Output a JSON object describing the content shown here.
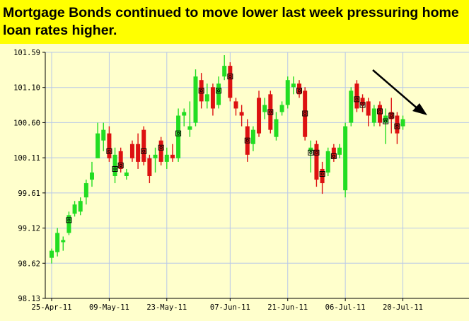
{
  "title": "Mortgage Bonds continued to move lower last week pressuring home loan rates higher.",
  "colors": {
    "background": "#ffffcc",
    "title_band": "#ffff00",
    "up": "#22dd22",
    "down": "#dd1111",
    "grid": "#b8c8e8"
  },
  "chart_data": {
    "type": "candlestick",
    "title": "Mortgage Bonds continued to move lower last week pressuring home loan rates higher.",
    "ylim": [
      98.13,
      101.59
    ],
    "y_ticks": [
      "101.59",
      "101.10",
      "100.60",
      "100.11",
      "99.61",
      "99.12",
      "98.62",
      "98.13"
    ],
    "x_ticks": [
      {
        "label": "25-Apr-11",
        "index": 0
      },
      {
        "label": "09-May-11",
        "index": 10
      },
      {
        "label": "23-May-11",
        "index": 20
      },
      {
        "label": "07-Jun-11",
        "index": 31
      },
      {
        "label": "21-Jun-11",
        "index": 41
      },
      {
        "label": "06-Jul-11",
        "index": 51
      },
      {
        "label": "20-Jul-11",
        "index": 61
      }
    ],
    "grid": true,
    "annotation": "downward arrow drawn over the last two weeks of July",
    "candles": [
      {
        "o": 98.7,
        "h": 98.83,
        "l": 98.62,
        "c": 98.8
      },
      {
        "o": 98.78,
        "h": 99.12,
        "l": 98.72,
        "c": 99.05
      },
      {
        "o": 98.92,
        "h": 99.0,
        "l": 98.8,
        "c": 98.95
      },
      {
        "o": 99.05,
        "h": 99.35,
        "l": 99.02,
        "c": 99.3,
        "m": 99.23
      },
      {
        "o": 99.32,
        "h": 99.5,
        "l": 99.28,
        "c": 99.45
      },
      {
        "o": 99.35,
        "h": 99.55,
        "l": 99.3,
        "c": 99.5
      },
      {
        "o": 99.55,
        "h": 99.8,
        "l": 99.45,
        "c": 99.75
      },
      {
        "o": 99.8,
        "h": 100.05,
        "l": 99.7,
        "c": 99.9
      },
      {
        "o": 100.1,
        "h": 100.6,
        "l": 100.1,
        "c": 100.45
      },
      {
        "o": 100.35,
        "h": 100.6,
        "l": 100.2,
        "c": 100.5
      },
      {
        "o": 100.45,
        "h": 100.55,
        "l": 100.05,
        "c": 100.1,
        "m": 100.2
      },
      {
        "o": 99.85,
        "h": 100.25,
        "l": 99.75,
        "c": 100.15,
        "m": 99.95
      },
      {
        "o": 100.2,
        "h": 100.25,
        "l": 99.9,
        "c": 99.95,
        "m": 100.0
      },
      {
        "o": 99.85,
        "h": 99.95,
        "l": 99.8,
        "c": 99.9
      },
      {
        "o": 100.3,
        "h": 100.35,
        "l": 100.05,
        "c": 100.1
      },
      {
        "o": 100.3,
        "h": 100.45,
        "l": 99.95,
        "c": 100.05
      },
      {
        "o": 100.5,
        "h": 100.55,
        "l": 100.0,
        "c": 100.05,
        "m": 100.2
      },
      {
        "o": 100.1,
        "h": 100.15,
        "l": 99.75,
        "c": 99.85
      },
      {
        "o": 100.1,
        "h": 100.25,
        "l": 99.9,
        "c": 100.15
      },
      {
        "o": 100.35,
        "h": 100.4,
        "l": 100.0,
        "c": 100.05,
        "m": 100.25
      },
      {
        "o": 100.05,
        "h": 100.25,
        "l": 99.95,
        "c": 100.15
      },
      {
        "o": 100.15,
        "h": 100.3,
        "l": 100.05,
        "c": 100.1
      },
      {
        "o": 100.1,
        "h": 100.8,
        "l": 100.05,
        "c": 100.7,
        "m": 100.45
      },
      {
        "o": 100.7,
        "h": 100.8,
        "l": 100.55,
        "c": 100.75
      },
      {
        "o": 100.5,
        "h": 100.9,
        "l": 100.4,
        "c": 100.55
      },
      {
        "o": 100.6,
        "h": 101.35,
        "l": 100.55,
        "c": 101.25
      },
      {
        "o": 101.2,
        "h": 101.3,
        "l": 100.8,
        "c": 100.9,
        "m": 101.05
      },
      {
        "o": 100.9,
        "h": 101.15,
        "l": 100.8,
        "c": 101.0
      },
      {
        "o": 101.1,
        "h": 101.15,
        "l": 100.7,
        "c": 100.8
      },
      {
        "o": 100.85,
        "h": 101.25,
        "l": 100.8,
        "c": 101.15,
        "m": 101.05
      },
      {
        "o": 101.25,
        "h": 101.55,
        "l": 101.2,
        "c": 101.4
      },
      {
        "o": 101.4,
        "h": 101.45,
        "l": 100.9,
        "c": 100.95,
        "m": 101.25
      },
      {
        "o": 100.9,
        "h": 100.95,
        "l": 100.7,
        "c": 100.8
      },
      {
        "o": 100.75,
        "h": 100.85,
        "l": 100.55,
        "c": 100.7
      },
      {
        "o": 100.55,
        "h": 100.65,
        "l": 100.05,
        "c": 100.15,
        "m": 100.35
      },
      {
        "o": 100.3,
        "h": 100.55,
        "l": 100.2,
        "c": 100.5
      },
      {
        "o": 100.95,
        "h": 101.05,
        "l": 100.4,
        "c": 100.45
      },
      {
        "o": 100.75,
        "h": 100.95,
        "l": 100.65,
        "c": 100.85
      },
      {
        "o": 101.0,
        "h": 101.05,
        "l": 100.45,
        "c": 100.5,
        "m": 100.75
      },
      {
        "o": 100.4,
        "h": 100.75,
        "l": 100.35,
        "c": 100.65
      },
      {
        "o": 100.75,
        "h": 100.9,
        "l": 100.7,
        "c": 100.85
      },
      {
        "o": 100.85,
        "h": 101.25,
        "l": 100.8,
        "c": 101.2
      },
      {
        "o": 101.1,
        "h": 101.25,
        "l": 101.0,
        "c": 101.15
      },
      {
        "o": 101.15,
        "h": 101.2,
        "l": 100.95,
        "c": 101.0,
        "m": 101.05
      },
      {
        "o": 101.05,
        "h": 101.1,
        "l": 100.35,
        "c": 100.4,
        "m": 100.73
      },
      {
        "o": 100.2,
        "h": 100.35,
        "l": 99.9,
        "c": 100.25,
        "m": 100.18
      },
      {
        "o": 100.3,
        "h": 100.35,
        "l": 99.7,
        "c": 99.8,
        "m": 100.18
      },
      {
        "o": 99.95,
        "h": 100.05,
        "l": 99.6,
        "c": 99.75,
        "m": 99.88
      },
      {
        "o": 99.9,
        "h": 100.25,
        "l": 99.85,
        "c": 100.2
      },
      {
        "o": 100.25,
        "h": 100.3,
        "l": 100.05,
        "c": 100.1,
        "m": 100.13
      },
      {
        "o": 100.15,
        "h": 100.3,
        "l": 100.1,
        "c": 100.25
      },
      {
        "o": 99.65,
        "h": 100.6,
        "l": 99.55,
        "c": 100.55
      },
      {
        "o": 100.6,
        "h": 101.1,
        "l": 100.55,
        "c": 101.05
      },
      {
        "o": 101.15,
        "h": 101.2,
        "l": 100.75,
        "c": 100.8,
        "m": 100.93
      },
      {
        "o": 100.95,
        "h": 101.0,
        "l": 100.75,
        "c": 100.85,
        "m": 100.85
      },
      {
        "o": 100.9,
        "h": 100.95,
        "l": 100.55,
        "c": 100.7
      },
      {
        "o": 100.6,
        "h": 100.85,
        "l": 100.55,
        "c": 100.8
      },
      {
        "o": 100.85,
        "h": 100.9,
        "l": 100.55,
        "c": 100.6,
        "m": 100.76
      },
      {
        "o": 100.6,
        "h": 100.8,
        "l": 100.3,
        "c": 100.7,
        "m": 100.62
      },
      {
        "o": 100.75,
        "h": 100.95,
        "l": 100.45,
        "c": 100.65,
        "m": 100.7
      },
      {
        "o": 100.7,
        "h": 100.75,
        "l": 100.3,
        "c": 100.45,
        "m": 100.55
      },
      {
        "o": 100.55,
        "h": 100.7,
        "l": 100.5,
        "c": 100.65
      }
    ]
  }
}
